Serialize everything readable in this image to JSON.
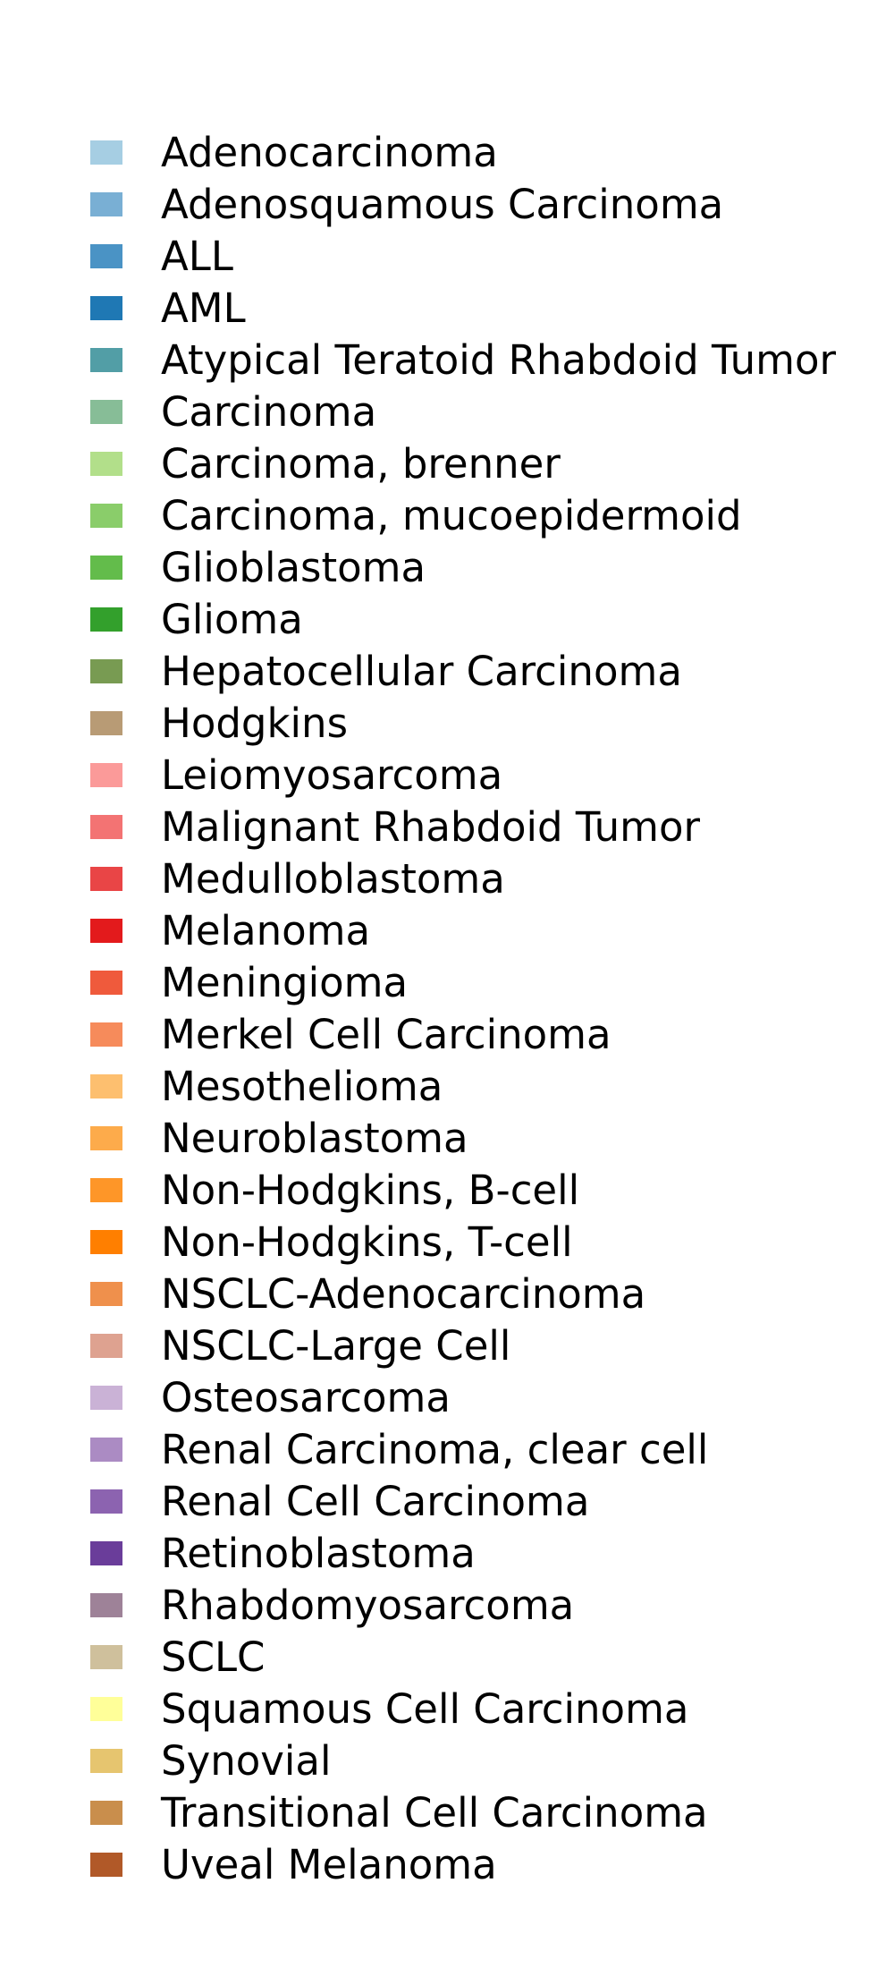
{
  "chart_data": {
    "type": "legend",
    "title": "",
    "entries": [
      {
        "label": "Adenocarcinoma",
        "color": "#a6cee3"
      },
      {
        "label": "Adenosquamous Carcinoma",
        "color": "#79afd4"
      },
      {
        "label": "ALL",
        "color": "#4a93c5"
      },
      {
        "label": "AML",
        "color": "#1f78b4"
      },
      {
        "label": "Atypical Teratoid Rhabdoid Tumor",
        "color": "#529ea6"
      },
      {
        "label": "Carcinoma",
        "color": "#87bd97"
      },
      {
        "label": "Carcinoma, brenner",
        "color": "#b2df8a"
      },
      {
        "label": "Carcinoma, mucoepidermoid",
        "color": "#8acd6a"
      },
      {
        "label": "Glioblastoma",
        "color": "#63bc4b"
      },
      {
        "label": "Glioma",
        "color": "#33a02c"
      },
      {
        "label": "Hepatocellular Carcinoma",
        "color": "#789b52"
      },
      {
        "label": "Hodgkins",
        "color": "#b89b75"
      },
      {
        "label": "Leiomyosarcoma",
        "color": "#fb9a99"
      },
      {
        "label": "Malignant Rhabdoid Tumor",
        "color": "#f37373"
      },
      {
        "label": "Medulloblastoma",
        "color": "#e94546"
      },
      {
        "label": "Melanoma",
        "color": "#e31a1c"
      },
      {
        "label": "Meningioma",
        "color": "#ef5a3c"
      },
      {
        "label": "Merkel Cell Carcinoma",
        "color": "#f68b5b"
      },
      {
        "label": "Mesothelioma",
        "color": "#fdbf6f"
      },
      {
        "label": "Neuroblastoma",
        "color": "#fdab4b"
      },
      {
        "label": "Non-Hodgkins, B-cell",
        "color": "#fe9628"
      },
      {
        "label": "Non-Hodgkins, T-cell",
        "color": "#ff7f00"
      },
      {
        "label": "NSCLC-Adenocarcinoma",
        "color": "#ef904c"
      },
      {
        "label": "NSCLC-Large Cell",
        "color": "#dea290"
      },
      {
        "label": "Osteosarcoma",
        "color": "#cab2d6"
      },
      {
        "label": "Renal Carcinoma, clear cell",
        "color": "#ab8bc3"
      },
      {
        "label": "Renal Cell Carcinoma",
        "color": "#8c63b0"
      },
      {
        "label": "Retinoblastoma",
        "color": "#6a3d9a"
      },
      {
        "label": "Rhabdomyosarcoma",
        "color": "#9e8298"
      },
      {
        "label": "SCLC",
        "color": "#cfc09c"
      },
      {
        "label": "Squamous Cell Carcinoma",
        "color": "#ffff99"
      },
      {
        "label": "Synovial",
        "color": "#e6c56f"
      },
      {
        "label": "Transitional Cell Carcinoma",
        "color": "#c98e4c"
      },
      {
        "label": "Uveal Melanoma",
        "color": "#b15928"
      }
    ]
  }
}
